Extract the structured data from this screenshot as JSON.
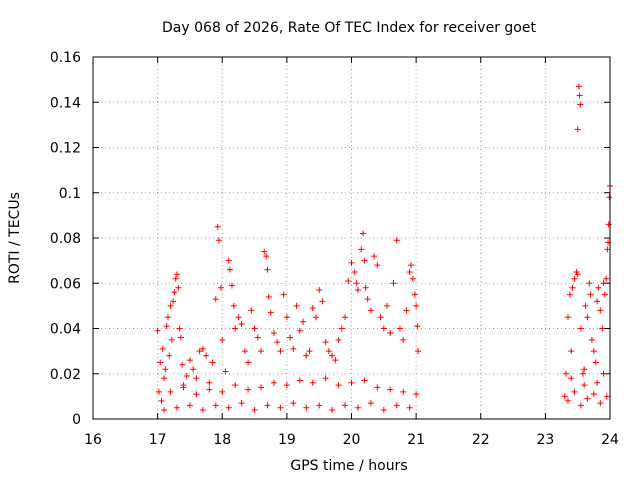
{
  "chart_data": {
    "type": "scatter",
    "title": "Day 068 of 2026, Rate Of TEC Index for receiver goet",
    "xlabel": "GPS time / hours",
    "ylabel": "ROTI / TECUs",
    "xlim": [
      16,
      24
    ],
    "ylim": [
      0,
      0.16
    ],
    "x_ticks": [
      "16",
      "17",
      "18",
      "19",
      "20",
      "21",
      "22",
      "23",
      "24"
    ],
    "y_ticks": [
      "0",
      "0.02",
      "0.04",
      "0.06",
      "0.08",
      "0.1",
      "0.12",
      "0.14",
      "0.16"
    ],
    "grid": true,
    "marker": "+",
    "color": "#ff0000",
    "series": [
      {
        "values": [
          [
            17.0,
            0.039
          ],
          [
            17.02,
            0.012
          ],
          [
            17.04,
            0.025
          ],
          [
            17.06,
            0.008
          ],
          [
            17.08,
            0.031
          ],
          [
            17.1,
            0.018
          ],
          [
            17.12,
            0.022
          ],
          [
            17.14,
            0.041
          ],
          [
            17.16,
            0.045
          ],
          [
            17.18,
            0.028
          ],
          [
            17.2,
            0.05
          ],
          [
            17.22,
            0.035
          ],
          [
            17.24,
            0.052
          ],
          [
            17.26,
            0.056
          ],
          [
            17.28,
            0.062
          ],
          [
            17.3,
            0.064
          ],
          [
            17.32,
            0.058
          ],
          [
            17.34,
            0.04
          ],
          [
            17.36,
            0.036
          ],
          [
            17.38,
            0.024
          ],
          [
            17.4,
            0.015
          ],
          [
            17.45,
            0.019
          ],
          [
            17.5,
            0.026
          ],
          [
            17.55,
            0.022
          ],
          [
            17.6,
            0.018
          ],
          [
            17.65,
            0.03
          ],
          [
            17.7,
            0.031
          ],
          [
            17.75,
            0.028
          ],
          [
            17.8,
            0.016
          ],
          [
            17.85,
            0.025
          ],
          [
            17.9,
            0.053
          ],
          [
            17.93,
            0.085
          ],
          [
            17.95,
            0.079
          ],
          [
            17.98,
            0.058
          ],
          [
            18.0,
            0.035
          ],
          [
            18.05,
            0.021
          ],
          [
            18.1,
            0.07
          ],
          [
            18.12,
            0.066
          ],
          [
            18.15,
            0.059
          ],
          [
            18.18,
            0.05
          ],
          [
            18.2,
            0.04
          ],
          [
            18.25,
            0.045
          ],
          [
            18.3,
            0.042
          ],
          [
            18.35,
            0.03
          ],
          [
            18.4,
            0.025
          ],
          [
            18.45,
            0.048
          ],
          [
            18.5,
            0.04
          ],
          [
            18.55,
            0.036
          ],
          [
            18.6,
            0.03
          ],
          [
            18.65,
            0.074
          ],
          [
            18.68,
            0.072
          ],
          [
            18.7,
            0.066
          ],
          [
            18.72,
            0.054
          ],
          [
            18.75,
            0.047
          ],
          [
            18.8,
            0.038
          ],
          [
            18.85,
            0.034
          ],
          [
            18.9,
            0.03
          ],
          [
            18.95,
            0.055
          ],
          [
            19.0,
            0.045
          ],
          [
            19.05,
            0.036
          ],
          [
            19.1,
            0.031
          ],
          [
            19.15,
            0.05
          ],
          [
            19.2,
            0.039
          ],
          [
            19.25,
            0.043
          ],
          [
            19.3,
            0.028
          ],
          [
            19.35,
            0.03
          ],
          [
            19.4,
            0.049
          ],
          [
            19.45,
            0.045
          ],
          [
            19.5,
            0.057
          ],
          [
            19.55,
            0.052
          ],
          [
            19.6,
            0.034
          ],
          [
            19.65,
            0.03
          ],
          [
            19.7,
            0.028
          ],
          [
            19.75,
            0.026
          ],
          [
            19.8,
            0.035
          ],
          [
            19.85,
            0.04
          ],
          [
            19.9,
            0.045
          ],
          [
            19.95,
            0.061
          ],
          [
            20.0,
            0.069
          ],
          [
            20.05,
            0.065
          ],
          [
            20.08,
            0.06
          ],
          [
            20.1,
            0.057
          ],
          [
            20.15,
            0.075
          ],
          [
            20.18,
            0.082
          ],
          [
            20.2,
            0.07
          ],
          [
            20.22,
            0.058
          ],
          [
            20.25,
            0.053
          ],
          [
            20.3,
            0.048
          ],
          [
            20.35,
            0.072
          ],
          [
            20.4,
            0.068
          ],
          [
            20.45,
            0.045
          ],
          [
            20.5,
            0.04
          ],
          [
            20.55,
            0.05
          ],
          [
            20.6,
            0.038
          ],
          [
            20.65,
            0.06
          ],
          [
            20.7,
            0.079
          ],
          [
            20.75,
            0.04
          ],
          [
            20.8,
            0.035
          ],
          [
            20.85,
            0.048
          ],
          [
            20.9,
            0.065
          ],
          [
            20.92,
            0.068
          ],
          [
            20.95,
            0.062
          ],
          [
            20.98,
            0.055
          ],
          [
            21.0,
            0.05
          ],
          [
            21.02,
            0.041
          ],
          [
            21.03,
            0.03
          ],
          [
            17.1,
            0.004
          ],
          [
            17.3,
            0.005
          ],
          [
            17.5,
            0.006
          ],
          [
            17.7,
            0.004
          ],
          [
            17.9,
            0.006
          ],
          [
            18.1,
            0.005
          ],
          [
            18.3,
            0.007
          ],
          [
            18.5,
            0.004
          ],
          [
            18.7,
            0.006
          ],
          [
            18.9,
            0.005
          ],
          [
            19.1,
            0.007
          ],
          [
            19.3,
            0.005
          ],
          [
            19.5,
            0.006
          ],
          [
            19.7,
            0.004
          ],
          [
            19.9,
            0.006
          ],
          [
            20.1,
            0.005
          ],
          [
            20.3,
            0.007
          ],
          [
            20.5,
            0.004
          ],
          [
            20.7,
            0.006
          ],
          [
            20.9,
            0.005
          ],
          [
            17.2,
            0.012
          ],
          [
            17.4,
            0.014
          ],
          [
            17.6,
            0.011
          ],
          [
            17.8,
            0.013
          ],
          [
            18.0,
            0.012
          ],
          [
            18.2,
            0.015
          ],
          [
            18.4,
            0.013
          ],
          [
            18.6,
            0.014
          ],
          [
            18.8,
            0.016
          ],
          [
            19.0,
            0.015
          ],
          [
            19.2,
            0.017
          ],
          [
            19.4,
            0.016
          ],
          [
            19.6,
            0.018
          ],
          [
            19.8,
            0.015
          ],
          [
            20.0,
            0.016
          ],
          [
            20.2,
            0.017
          ],
          [
            20.4,
            0.014
          ],
          [
            20.6,
            0.013
          ],
          [
            20.8,
            0.012
          ],
          [
            21.0,
            0.011
          ],
          [
            23.3,
            0.01
          ],
          [
            23.32,
            0.02
          ],
          [
            23.35,
            0.045
          ],
          [
            23.38,
            0.055
          ],
          [
            23.4,
            0.03
          ],
          [
            23.42,
            0.058
          ],
          [
            23.45,
            0.062
          ],
          [
            23.48,
            0.065
          ],
          [
            23.5,
            0.064
          ],
          [
            23.5,
            0.128
          ],
          [
            23.52,
            0.147
          ],
          [
            23.53,
            0.143
          ],
          [
            23.54,
            0.139
          ],
          [
            23.55,
            0.04
          ],
          [
            23.58,
            0.02
          ],
          [
            23.6,
            0.015
          ],
          [
            23.62,
            0.05
          ],
          [
            23.65,
            0.045
          ],
          [
            23.68,
            0.06
          ],
          [
            23.7,
            0.055
          ],
          [
            23.72,
            0.035
          ],
          [
            23.75,
            0.03
          ],
          [
            23.78,
            0.025
          ],
          [
            23.8,
            0.052
          ],
          [
            23.82,
            0.058
          ],
          [
            23.85,
            0.048
          ],
          [
            23.88,
            0.04
          ],
          [
            23.9,
            0.06
          ],
          [
            23.92,
            0.055
          ],
          [
            23.94,
            0.062
          ],
          [
            23.96,
            0.075
          ],
          [
            23.97,
            0.078
          ],
          [
            23.98,
            0.086
          ],
          [
            23.99,
            0.098
          ],
          [
            24.0,
            0.103
          ],
          [
            23.35,
            0.008
          ],
          [
            23.45,
            0.012
          ],
          [
            23.55,
            0.006
          ],
          [
            23.65,
            0.009
          ],
          [
            23.75,
            0.011
          ],
          [
            23.85,
            0.007
          ],
          [
            23.95,
            0.01
          ],
          [
            23.4,
            0.018
          ],
          [
            23.6,
            0.022
          ],
          [
            23.8,
            0.016
          ],
          [
            23.9,
            0.02
          ]
        ]
      }
    ]
  }
}
